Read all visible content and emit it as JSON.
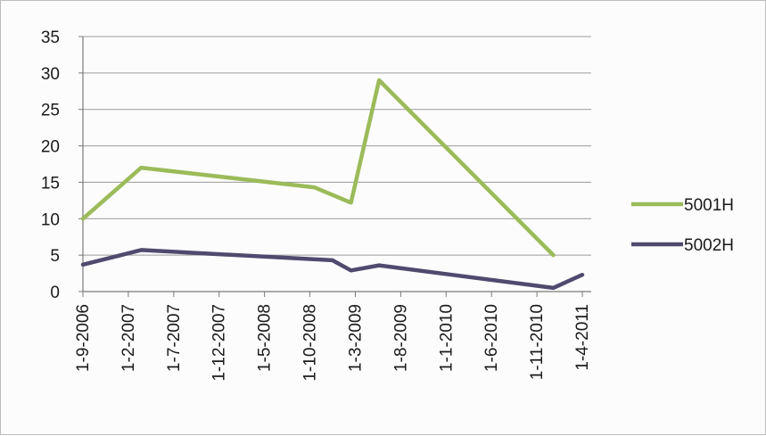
{
  "chart_data": {
    "type": "line",
    "title": "",
    "xlabel": "",
    "ylabel": "",
    "ylim": [
      0,
      35
    ],
    "y_ticks": [
      0,
      5,
      10,
      15,
      20,
      25,
      30,
      35
    ],
    "x_tick_labels": [
      "1-9-2006",
      "1-2-2007",
      "1-7-2007",
      "1-12-2007",
      "1-5-2008",
      "1-10-2008",
      "1-3-2009",
      "1-8-2009",
      "1-1-2010",
      "1-6-2010",
      "1-11-2010",
      "1-4-2011"
    ],
    "grid": "horizontal",
    "legend_position": "right",
    "series": [
      {
        "name": "5001H",
        "color": "#9bbb59",
        "points": [
          {
            "x": "2006-09-01",
            "y": 10
          },
          {
            "x": "2007-03-15",
            "y": 17
          },
          {
            "x": "2008-10-15",
            "y": 14.3
          },
          {
            "x": "2009-02-15",
            "y": 12.2
          },
          {
            "x": "2009-05-20",
            "y": 29
          },
          {
            "x": "2010-12-25",
            "y": 5
          }
        ]
      },
      {
        "name": "5002H",
        "color": "#4f4a6e",
        "points": [
          {
            "x": "2006-09-01",
            "y": 3.7
          },
          {
            "x": "2007-03-15",
            "y": 5.7
          },
          {
            "x": "2008-12-15",
            "y": 4.3
          },
          {
            "x": "2009-02-15",
            "y": 2.9
          },
          {
            "x": "2009-05-20",
            "y": 3.6
          },
          {
            "x": "2010-12-25",
            "y": 0.5
          },
          {
            "x": "2011-04-01",
            "y": 2.3
          }
        ]
      }
    ]
  }
}
